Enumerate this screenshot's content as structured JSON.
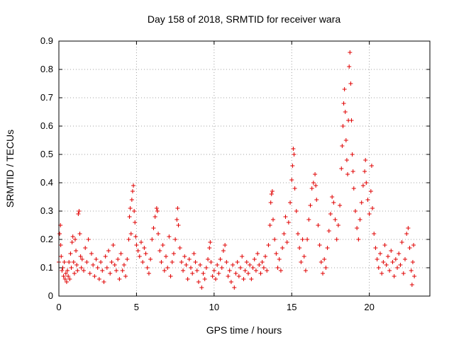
{
  "chart_data": {
    "type": "scatter",
    "title": "Day 158 of 2018, SRMTID for receiver wara",
    "xlabel": "GPS time / hours",
    "ylabel": "SRMTID / TECUs",
    "xlim": [
      0,
      23.9
    ],
    "ylim": [
      0,
      0.9
    ],
    "xticks": [
      0,
      5,
      10,
      15,
      20
    ],
    "yticks": [
      0,
      0.1,
      0.2,
      0.3,
      0.4,
      0.5,
      0.6,
      0.7,
      0.8,
      0.9
    ],
    "xtick_labels": [
      "0",
      "5",
      "10",
      "15",
      "20"
    ],
    "ytick_labels": [
      "0",
      "0.1",
      "0.2",
      "0.3",
      "0.4",
      "0.5",
      "0.6",
      "0.7",
      "0.8",
      "0.9"
    ],
    "grid": true,
    "marker": "plus",
    "color": "#e00000",
    "series": [
      {
        "name": "SRMTID",
        "points": [
          [
            0.0,
            0.12
          ],
          [
            0.05,
            0.22
          ],
          [
            0.1,
            0.25
          ],
          [
            0.12,
            0.18
          ],
          [
            0.15,
            0.14
          ],
          [
            0.2,
            0.09
          ],
          [
            0.25,
            0.1
          ],
          [
            0.3,
            0.07
          ],
          [
            0.35,
            0.12
          ],
          [
            0.4,
            0.06
          ],
          [
            0.45,
            0.08
          ],
          [
            0.5,
            0.05
          ],
          [
            0.55,
            0.09
          ],
          [
            0.6,
            0.07
          ],
          [
            0.65,
            0.12
          ],
          [
            0.7,
            0.06
          ],
          [
            0.75,
            0.15
          ],
          [
            0.8,
            0.1
          ],
          [
            0.85,
            0.19
          ],
          [
            0.9,
            0.21
          ],
          [
            0.95,
            0.12
          ],
          [
            1.0,
            0.08
          ],
          [
            1.05,
            0.2
          ],
          [
            1.1,
            0.16
          ],
          [
            1.15,
            0.11
          ],
          [
            1.2,
            0.09
          ],
          [
            1.25,
            0.29
          ],
          [
            1.3,
            0.3
          ],
          [
            1.35,
            0.22
          ],
          [
            1.4,
            0.14
          ],
          [
            1.45,
            0.1
          ],
          [
            1.5,
            0.13
          ],
          [
            1.6,
            0.09
          ],
          [
            1.7,
            0.17
          ],
          [
            1.8,
            0.12
          ],
          [
            1.9,
            0.2
          ],
          [
            2.0,
            0.08
          ],
          [
            2.1,
            0.15
          ],
          [
            2.2,
            0.11
          ],
          [
            2.3,
            0.07
          ],
          [
            2.4,
            0.13
          ],
          [
            2.5,
            0.1
          ],
          [
            2.6,
            0.06
          ],
          [
            2.7,
            0.12
          ],
          [
            2.8,
            0.09
          ],
          [
            2.9,
            0.05
          ],
          [
            3.0,
            0.14
          ],
          [
            3.1,
            0.1
          ],
          [
            3.2,
            0.16
          ],
          [
            3.3,
            0.08
          ],
          [
            3.4,
            0.12
          ],
          [
            3.5,
            0.18
          ],
          [
            3.6,
            0.11
          ],
          [
            3.7,
            0.09
          ],
          [
            3.8,
            0.13
          ],
          [
            3.9,
            0.06
          ],
          [
            4.0,
            0.15
          ],
          [
            4.1,
            0.09
          ],
          [
            4.2,
            0.11
          ],
          [
            4.3,
            0.07
          ],
          [
            4.4,
            0.13
          ],
          [
            4.5,
            0.2
          ],
          [
            4.55,
            0.28
          ],
          [
            4.6,
            0.31
          ],
          [
            4.65,
            0.22
          ],
          [
            4.7,
            0.34
          ],
          [
            4.75,
            0.37
          ],
          [
            4.8,
            0.39
          ],
          [
            4.85,
            0.3
          ],
          [
            4.9,
            0.26
          ],
          [
            4.95,
            0.21
          ],
          [
            5.0,
            0.18
          ],
          [
            5.1,
            0.16
          ],
          [
            5.2,
            0.14
          ],
          [
            5.3,
            0.19
          ],
          [
            5.4,
            0.12
          ],
          [
            5.5,
            0.17
          ],
          [
            5.6,
            0.15
          ],
          [
            5.7,
            0.1
          ],
          [
            5.8,
            0.08
          ],
          [
            5.9,
            0.13
          ],
          [
            6.0,
            0.2
          ],
          [
            6.1,
            0.24
          ],
          [
            6.2,
            0.28
          ],
          [
            6.3,
            0.31
          ],
          [
            6.35,
            0.3
          ],
          [
            6.4,
            0.22
          ],
          [
            6.5,
            0.16
          ],
          [
            6.6,
            0.12
          ],
          [
            6.7,
            0.18
          ],
          [
            6.8,
            0.09
          ],
          [
            6.9,
            0.14
          ],
          [
            7.0,
            0.1
          ],
          [
            7.1,
            0.21
          ],
          [
            7.2,
            0.07
          ],
          [
            7.3,
            0.12
          ],
          [
            7.4,
            0.15
          ],
          [
            7.5,
            0.2
          ],
          [
            7.6,
            0.27
          ],
          [
            7.65,
            0.31
          ],
          [
            7.7,
            0.25
          ],
          [
            7.8,
            0.17
          ],
          [
            7.9,
            0.12
          ],
          [
            8.0,
            0.09
          ],
          [
            8.1,
            0.14
          ],
          [
            8.2,
            0.11
          ],
          [
            8.3,
            0.06
          ],
          [
            8.4,
            0.13
          ],
          [
            8.5,
            0.1
          ],
          [
            8.6,
            0.08
          ],
          [
            8.7,
            0.15
          ],
          [
            8.8,
            0.12
          ],
          [
            8.9,
            0.09
          ],
          [
            9.0,
            0.05
          ],
          [
            9.1,
            0.11
          ],
          [
            9.2,
            0.03
          ],
          [
            9.3,
            0.08
          ],
          [
            9.4,
            0.06
          ],
          [
            9.5,
            0.1
          ],
          [
            9.6,
            0.13
          ],
          [
            9.7,
            0.17
          ],
          [
            9.75,
            0.19
          ],
          [
            9.8,
            0.12
          ],
          [
            9.9,
            0.07
          ],
          [
            10.0,
            0.09
          ],
          [
            10.1,
            0.06
          ],
          [
            10.2,
            0.11
          ],
          [
            10.3,
            0.08
          ],
          [
            10.4,
            0.13
          ],
          [
            10.5,
            0.1
          ],
          [
            10.6,
            0.16
          ],
          [
            10.7,
            0.18
          ],
          [
            10.8,
            0.12
          ],
          [
            10.9,
            0.07
          ],
          [
            11.0,
            0.09
          ],
          [
            11.1,
            0.05
          ],
          [
            11.2,
            0.11
          ],
          [
            11.3,
            0.03
          ],
          [
            11.4,
            0.08
          ],
          [
            11.5,
            0.12
          ],
          [
            11.6,
            0.07
          ],
          [
            11.7,
            0.1
          ],
          [
            11.8,
            0.14
          ],
          [
            11.9,
            0.06
          ],
          [
            12.0,
            0.09
          ],
          [
            12.1,
            0.12
          ],
          [
            12.2,
            0.08
          ],
          [
            12.3,
            0.11
          ],
          [
            12.4,
            0.06
          ],
          [
            12.5,
            0.1
          ],
          [
            12.6,
            0.13
          ],
          [
            12.7,
            0.09
          ],
          [
            12.8,
            0.15
          ],
          [
            12.9,
            0.11
          ],
          [
            13.0,
            0.08
          ],
          [
            13.1,
            0.12
          ],
          [
            13.2,
            0.1
          ],
          [
            13.3,
            0.14
          ],
          [
            13.4,
            0.09
          ],
          [
            13.5,
            0.18
          ],
          [
            13.6,
            0.25
          ],
          [
            13.65,
            0.33
          ],
          [
            13.7,
            0.36
          ],
          [
            13.75,
            0.37
          ],
          [
            13.8,
            0.27
          ],
          [
            13.9,
            0.2
          ],
          [
            14.0,
            0.15
          ],
          [
            14.1,
            0.1
          ],
          [
            14.2,
            0.13
          ],
          [
            14.3,
            0.09
          ],
          [
            14.4,
            0.17
          ],
          [
            14.5,
            0.22
          ],
          [
            14.6,
            0.28
          ],
          [
            14.7,
            0.19
          ],
          [
            14.8,
            0.26
          ],
          [
            14.9,
            0.33
          ],
          [
            15.0,
            0.41
          ],
          [
            15.05,
            0.46
          ],
          [
            15.1,
            0.52
          ],
          [
            15.15,
            0.5
          ],
          [
            15.2,
            0.38
          ],
          [
            15.3,
            0.3
          ],
          [
            15.4,
            0.22
          ],
          [
            15.5,
            0.17
          ],
          [
            15.6,
            0.12
          ],
          [
            15.7,
            0.2
          ],
          [
            15.8,
            0.14
          ],
          [
            15.9,
            0.09
          ],
          [
            16.0,
            0.2
          ],
          [
            16.1,
            0.27
          ],
          [
            16.2,
            0.32
          ],
          [
            16.3,
            0.38
          ],
          [
            16.4,
            0.4
          ],
          [
            16.5,
            0.43
          ],
          [
            16.55,
            0.39
          ],
          [
            16.6,
            0.34
          ],
          [
            16.7,
            0.25
          ],
          [
            16.8,
            0.18
          ],
          [
            16.9,
            0.12
          ],
          [
            17.0,
            0.08
          ],
          [
            17.1,
            0.13
          ],
          [
            17.2,
            0.1
          ],
          [
            17.3,
            0.17
          ],
          [
            17.4,
            0.23
          ],
          [
            17.5,
            0.29
          ],
          [
            17.6,
            0.35
          ],
          [
            17.7,
            0.33
          ],
          [
            17.8,
            0.27
          ],
          [
            17.9,
            0.2
          ],
          [
            18.0,
            0.25
          ],
          [
            18.1,
            0.32
          ],
          [
            18.2,
            0.45
          ],
          [
            18.25,
            0.53
          ],
          [
            18.3,
            0.6
          ],
          [
            18.35,
            0.68
          ],
          [
            18.4,
            0.73
          ],
          [
            18.45,
            0.65
          ],
          [
            18.5,
            0.55
          ],
          [
            18.55,
            0.48
          ],
          [
            18.6,
            0.43
          ],
          [
            18.65,
            0.62
          ],
          [
            18.7,
            0.81
          ],
          [
            18.75,
            0.86
          ],
          [
            18.8,
            0.75
          ],
          [
            18.85,
            0.62
          ],
          [
            18.9,
            0.5
          ],
          [
            18.95,
            0.44
          ],
          [
            19.0,
            0.38
          ],
          [
            19.1,
            0.3
          ],
          [
            19.2,
            0.24
          ],
          [
            19.3,
            0.2
          ],
          [
            19.4,
            0.27
          ],
          [
            19.5,
            0.33
          ],
          [
            19.6,
            0.39
          ],
          [
            19.7,
            0.44
          ],
          [
            19.75,
            0.48
          ],
          [
            19.8,
            0.4
          ],
          [
            19.9,
            0.34
          ],
          [
            20.0,
            0.29
          ],
          [
            20.1,
            0.37
          ],
          [
            20.15,
            0.46
          ],
          [
            20.2,
            0.31
          ],
          [
            20.3,
            0.22
          ],
          [
            20.4,
            0.17
          ],
          [
            20.5,
            0.13
          ],
          [
            20.6,
            0.1
          ],
          [
            20.7,
            0.15
          ],
          [
            20.8,
            0.08
          ],
          [
            20.9,
            0.12
          ],
          [
            21.0,
            0.18
          ],
          [
            21.1,
            0.11
          ],
          [
            21.2,
            0.14
          ],
          [
            21.3,
            0.09
          ],
          [
            21.4,
            0.16
          ],
          [
            21.5,
            0.12
          ],
          [
            21.6,
            0.07
          ],
          [
            21.7,
            0.13
          ],
          [
            21.8,
            0.1
          ],
          [
            21.9,
            0.15
          ],
          [
            22.0,
            0.11
          ],
          [
            22.1,
            0.19
          ],
          [
            22.2,
            0.08
          ],
          [
            22.3,
            0.13
          ],
          [
            22.4,
            0.22
          ],
          [
            22.5,
            0.24
          ],
          [
            22.6,
            0.17
          ],
          [
            22.7,
            0.09
          ],
          [
            22.75,
            0.04
          ],
          [
            22.8,
            0.12
          ],
          [
            22.85,
            0.18
          ],
          [
            22.9,
            0.07
          ]
        ]
      }
    ]
  }
}
